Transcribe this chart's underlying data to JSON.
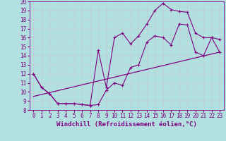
{
  "xlabel": "Windchill (Refroidissement éolien,°C)",
  "xlim": [
    -0.5,
    23.5
  ],
  "ylim": [
    8,
    20
  ],
  "xticks": [
    0,
    1,
    2,
    3,
    4,
    5,
    6,
    7,
    8,
    9,
    10,
    11,
    12,
    13,
    14,
    15,
    16,
    17,
    18,
    19,
    20,
    21,
    22,
    23
  ],
  "yticks": [
    8,
    9,
    10,
    11,
    12,
    13,
    14,
    15,
    16,
    17,
    18,
    19,
    20
  ],
  "bg_color": "#b2e0e0",
  "line_color": "#800080",
  "grid_color": "#c0d0d0",
  "line1_x": [
    0,
    1,
    2,
    3,
    4,
    5,
    6,
    7,
    8,
    9,
    10,
    11,
    12,
    13,
    14,
    15,
    16,
    17,
    18,
    19,
    20,
    21,
    22,
    23
  ],
  "line1_y": [
    12,
    10.5,
    9.8,
    8.7,
    8.7,
    8.7,
    8.6,
    8.5,
    14.6,
    10.5,
    16.0,
    16.5,
    15.3,
    16.2,
    17.5,
    19.0,
    19.8,
    19.1,
    18.9,
    18.8,
    16.5,
    16.0,
    16.0,
    14.4
  ],
  "line2_x": [
    0,
    1,
    2,
    3,
    4,
    5,
    6,
    7,
    8,
    9,
    10,
    11,
    12,
    13,
    14,
    15,
    16,
    17,
    18,
    19,
    20,
    21,
    22,
    23
  ],
  "line2_y": [
    12,
    10.5,
    9.8,
    8.7,
    8.7,
    8.7,
    8.6,
    8.5,
    8.6,
    10.2,
    11.0,
    10.7,
    12.7,
    13.0,
    15.5,
    16.2,
    16.0,
    15.2,
    17.5,
    17.4,
    14.4,
    14.0,
    16.0,
    15.8
  ],
  "line3_x": [
    0,
    23
  ],
  "line3_y": [
    9.5,
    14.4
  ],
  "font_family": "monospace",
  "font_size_ticks": 5.5,
  "font_size_xlabel": 6.5
}
